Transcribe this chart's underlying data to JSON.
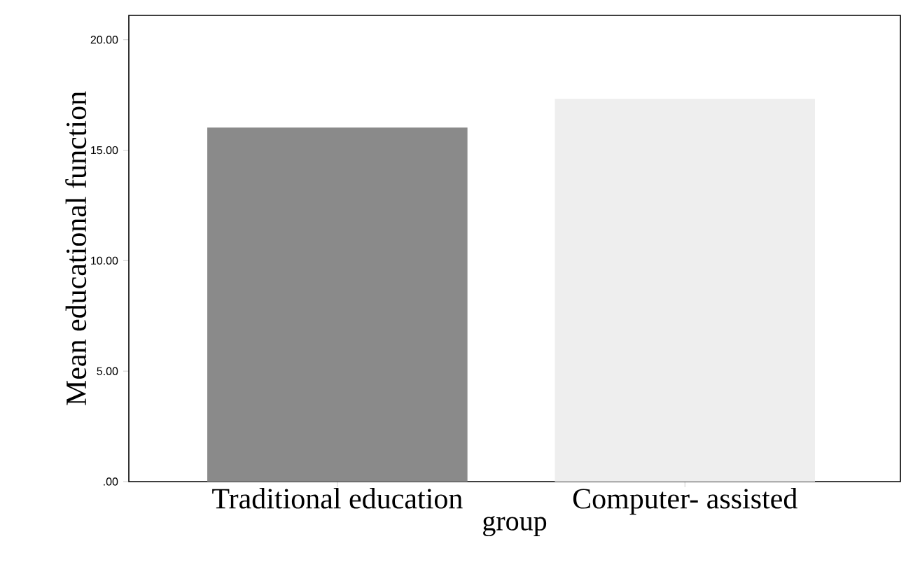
{
  "chart_data": {
    "type": "bar",
    "categories": [
      "Traditional education",
      "Computer- assisted"
    ],
    "values": [
      16.0,
      17.3
    ],
    "colors": [
      "#8a8a8a",
      "#eeeeee"
    ],
    "xlabel": "group",
    "ylabel": "Mean educational function",
    "ylim": [
      0,
      21.1
    ],
    "yticks": [
      {
        "value": 0,
        "label": ".00"
      },
      {
        "value": 5,
        "label": "5.00"
      },
      {
        "value": 10,
        "label": "10.00"
      },
      {
        "value": 15,
        "label": "15.00"
      },
      {
        "value": 20,
        "label": "20.00"
      }
    ]
  }
}
